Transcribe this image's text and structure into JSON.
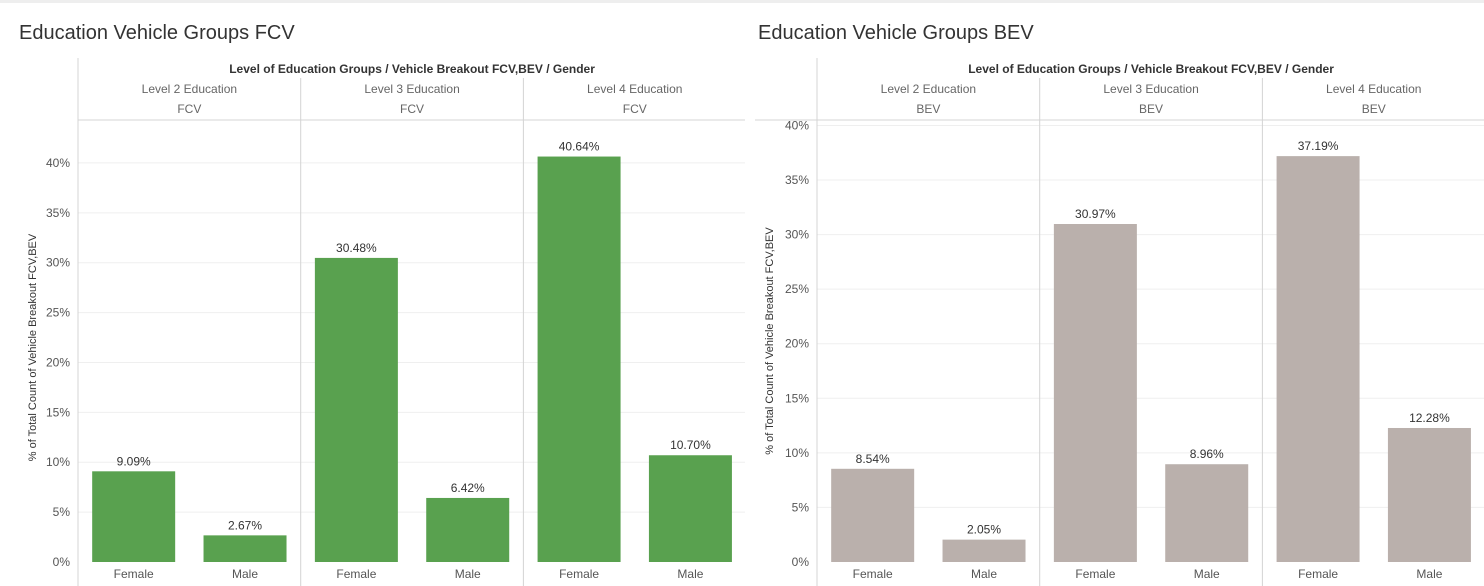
{
  "colors": {
    "fcv_bar": "#59a14f",
    "bev_bar": "#bab0ac",
    "grid": "#efefef",
    "divider": "#d4d4d4",
    "text": "#333333",
    "label": "#555555"
  },
  "chart_data": [
    {
      "type": "bar",
      "title": "Education Vehicle Groups FCV",
      "column_header": "Level of Education Groups  /  Vehicle Breakout FCV,BEV  /  Gender",
      "ylabel": "% of Total Count of Vehicle Breakout FCV,BEV",
      "ylim": [
        0,
        43
      ],
      "yticks": [
        0,
        5,
        10,
        15,
        20,
        25,
        30,
        35,
        40
      ],
      "ytick_labels": [
        "0%",
        "5%",
        "10%",
        "15%",
        "20%",
        "25%",
        "30%",
        "35%",
        "40%"
      ],
      "groups": [
        {
          "education": "Level 2 Education",
          "vehicle": "FCV",
          "categories": [
            "Female",
            "Male"
          ],
          "values": [
            9.09,
            2.67
          ],
          "labels": [
            "9.09%",
            "2.67%"
          ]
        },
        {
          "education": "Level 3 Education",
          "vehicle": "FCV",
          "categories": [
            "Female",
            "Male"
          ],
          "values": [
            30.48,
            6.42
          ],
          "labels": [
            "30.48%",
            "6.42%"
          ]
        },
        {
          "education": "Level 4 Education",
          "vehicle": "FCV",
          "categories": [
            "Female",
            "Male"
          ],
          "values": [
            40.64,
            10.7
          ],
          "labels": [
            "40.64%",
            "10.70%"
          ]
        }
      ]
    },
    {
      "type": "bar",
      "title": "Education Vehicle Groups BEV",
      "column_header": "Level of Education Groups  /  Vehicle Breakout FCV,BEV  /  Gender",
      "ylabel": "% of Total Count of Vehicle Breakout FCV,BEV",
      "ylim": [
        0,
        40.5
      ],
      "yticks": [
        0,
        5,
        10,
        15,
        20,
        25,
        30,
        35,
        40
      ],
      "ytick_labels": [
        "0%",
        "5%",
        "10%",
        "15%",
        "20%",
        "25%",
        "30%",
        "35%",
        "40%"
      ],
      "groups": [
        {
          "education": "Level 2 Education",
          "vehicle": "BEV",
          "categories": [
            "Female",
            "Male"
          ],
          "values": [
            8.54,
            2.05
          ],
          "labels": [
            "8.54%",
            "2.05%"
          ]
        },
        {
          "education": "Level 3 Education",
          "vehicle": "BEV",
          "categories": [
            "Female",
            "Male"
          ],
          "values": [
            30.97,
            8.96
          ],
          "labels": [
            "30.97%",
            "8.96%"
          ]
        },
        {
          "education": "Level 4 Education",
          "vehicle": "BEV",
          "categories": [
            "Female",
            "Male"
          ],
          "values": [
            37.19,
            12.28
          ],
          "labels": [
            "37.19%",
            "12.28%"
          ]
        }
      ]
    }
  ]
}
